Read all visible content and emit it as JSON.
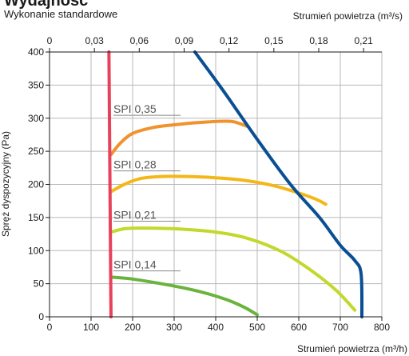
{
  "page": {
    "title": "Wydajność",
    "subtitle": "Wykonanie standardowe"
  },
  "chart_data": {
    "type": "line",
    "xlabel": "Strumień powietrza (m³/h)",
    "x2label": "Strumień powietrza (m³/s)",
    "ylabel": "Spręż dyspozycyjny (Pa)",
    "xlim": [
      0,
      800
    ],
    "ylim": [
      0,
      400
    ],
    "x2lim": [
      0,
      0.2222
    ],
    "xticks": [
      "0",
      "100",
      "200",
      "300",
      "400",
      "500",
      "600",
      "700",
      "800"
    ],
    "yticks": [
      "0",
      "50",
      "100",
      "150",
      "200",
      "250",
      "300",
      "350",
      "400"
    ],
    "x2ticks": [
      "0",
      "0,03",
      "0,06",
      "0,09",
      "0,12",
      "0,15",
      "0,18",
      "0,21"
    ],
    "x2tick_values": [
      0,
      0.03,
      0.06,
      0.09,
      0.12,
      0.15,
      0.18,
      0.21
    ],
    "grid": true,
    "series": [
      {
        "name": "SPI 0,35",
        "color": "#f0932f",
        "points": [
          [
            148,
            245
          ],
          [
            170,
            262
          ],
          [
            200,
            277
          ],
          [
            250,
            286
          ],
          [
            300,
            290
          ],
          [
            350,
            293
          ],
          [
            400,
            295
          ],
          [
            440,
            295
          ],
          [
            475,
            288
          ]
        ]
      },
      {
        "name": "SPI 0,28",
        "color": "#f4b71a",
        "points": [
          [
            148,
            189
          ],
          [
            180,
            200
          ],
          [
            220,
            209
          ],
          [
            270,
            212
          ],
          [
            330,
            212
          ],
          [
            400,
            210
          ],
          [
            470,
            206
          ],
          [
            540,
            198
          ],
          [
            600,
            187
          ],
          [
            640,
            178
          ],
          [
            665,
            170
          ]
        ]
      },
      {
        "name": "SPI 0,21",
        "color": "#c3d82c",
        "points": [
          [
            148,
            128
          ],
          [
            180,
            133
          ],
          [
            220,
            134
          ],
          [
            300,
            133
          ],
          [
            400,
            128
          ],
          [
            480,
            118
          ],
          [
            560,
            98
          ],
          [
            630,
            70
          ],
          [
            690,
            40
          ],
          [
            735,
            10
          ]
        ]
      },
      {
        "name": "SPI 0,14",
        "color": "#6ab43e",
        "points": [
          [
            148,
            60
          ],
          [
            200,
            57
          ],
          [
            260,
            51
          ],
          [
            320,
            44
          ],
          [
            380,
            35
          ],
          [
            430,
            25
          ],
          [
            470,
            14
          ],
          [
            500,
            3
          ]
        ]
      },
      {
        "name": "",
        "color": "#e8415a",
        "points": [
          [
            143,
            400
          ],
          [
            148,
            0
          ]
        ]
      },
      {
        "name": "",
        "color": "#0a4f94",
        "points": [
          [
            350,
            400
          ],
          [
            420,
            340
          ],
          [
            500,
            268
          ],
          [
            580,
            200
          ],
          [
            650,
            150
          ],
          [
            700,
            108
          ],
          [
            735,
            85
          ],
          [
            750,
            65
          ],
          [
            752,
            0
          ]
        ]
      }
    ],
    "annotations": [
      {
        "text": "SPI 0,35",
        "x": 200,
        "y": 308,
        "series": 0
      },
      {
        "text": "SPI 0,28",
        "x": 200,
        "y": 224,
        "series": 1
      },
      {
        "text": "SPI 0,21",
        "x": 200,
        "y": 148,
        "series": 2
      },
      {
        "text": "SPI 0,14",
        "x": 200,
        "y": 73,
        "series": 3
      }
    ]
  }
}
